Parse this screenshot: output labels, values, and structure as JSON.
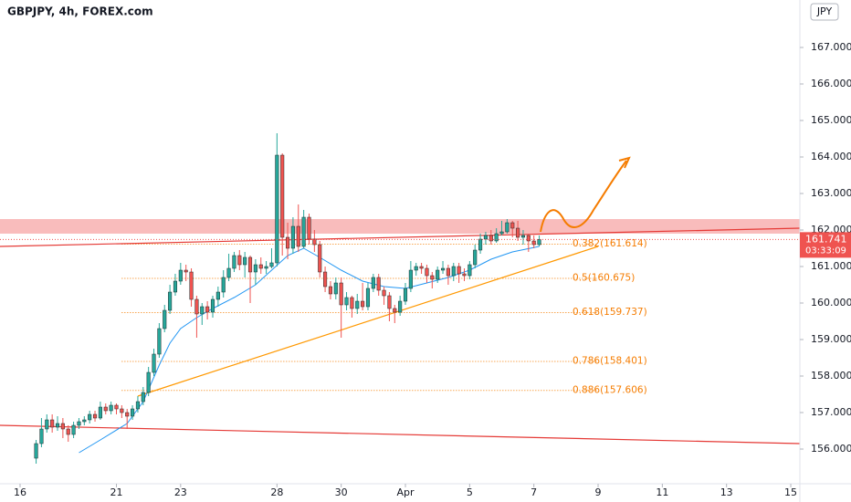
{
  "chart_data": {
    "type": "candlestick",
    "title": "GBPJPY, 4h, FOREX.com",
    "currency": "JPY",
    "up_color": "#26a69a",
    "down_color": "#ef5350",
    "xlim": [
      -3.75,
      145.7
    ],
    "ylim": [
      155.05,
      168.3
    ],
    "xticks": [
      {
        "value": 0,
        "label": "16"
      },
      {
        "value": 18,
        "label": "21"
      },
      {
        "value": 30,
        "label": "23"
      },
      {
        "value": 48,
        "label": "28"
      },
      {
        "value": 60,
        "label": "30"
      },
      {
        "value": 72,
        "label": "Apr"
      },
      {
        "value": 84,
        "label": "5"
      },
      {
        "value": 96,
        "label": "7"
      },
      {
        "value": 108,
        "label": "9"
      },
      {
        "value": 120,
        "label": "11"
      },
      {
        "value": 132,
        "label": "13"
      },
      {
        "value": 144,
        "label": "15"
      }
    ],
    "yticks": [
      {
        "value": 156,
        "label": "156.000"
      },
      {
        "value": 157,
        "label": "157.000"
      },
      {
        "value": 158,
        "label": "158.000"
      },
      {
        "value": 159,
        "label": "159.000"
      },
      {
        "value": 160,
        "label": "160.000"
      },
      {
        "value": 161,
        "label": "161.000"
      },
      {
        "value": 162,
        "label": "162.000"
      },
      {
        "value": 163,
        "label": "163.000"
      },
      {
        "value": 164,
        "label": "164.000"
      },
      {
        "value": 165,
        "label": "165.000"
      },
      {
        "value": 166,
        "label": "166.000"
      },
      {
        "value": 167,
        "label": "167.000"
      }
    ],
    "x": [
      3,
      4,
      5,
      6,
      7,
      8,
      9,
      10,
      11,
      12,
      13,
      14,
      15,
      16,
      17,
      18,
      19,
      20,
      21,
      22,
      23,
      24,
      25,
      26,
      27,
      28,
      29,
      30,
      31,
      32,
      33,
      34,
      35,
      36,
      37,
      38,
      39,
      40,
      41,
      42,
      43,
      44,
      45,
      46,
      47,
      48,
      49,
      50,
      51,
      52,
      53,
      54,
      55,
      56,
      57,
      58,
      59,
      60,
      61,
      62,
      63,
      64,
      65,
      66,
      67,
      68,
      69,
      70,
      71,
      72,
      73,
      74,
      75,
      76,
      77,
      78,
      79,
      80,
      81,
      82,
      83,
      84,
      85,
      86,
      87,
      88,
      89,
      90,
      91,
      92,
      93,
      94,
      95,
      96,
      97
    ],
    "open": [
      155.75,
      156.15,
      156.55,
      156.8,
      156.6,
      156.7,
      156.55,
      156.4,
      156.65,
      156.75,
      156.8,
      156.95,
      156.85,
      157.15,
      157.05,
      157.2,
      157.1,
      157.0,
      156.9,
      157.1,
      157.3,
      157.55,
      158.1,
      158.6,
      159.3,
      159.8,
      160.3,
      160.6,
      160.9,
      160.85,
      160.1,
      159.7,
      159.9,
      159.75,
      160.1,
      160.3,
      160.7,
      160.95,
      161.3,
      161.05,
      161.25,
      160.85,
      161.05,
      160.95,
      161.0,
      161.1,
      164.05,
      161.8,
      161.5,
      162.1,
      161.55,
      162.35,
      161.75,
      161.6,
      160.85,
      160.45,
      160.25,
      160.55,
      159.95,
      160.15,
      159.85,
      160.05,
      159.9,
      160.4,
      160.7,
      160.35,
      160.2,
      159.85,
      159.75,
      160.05,
      160.4,
      160.9,
      161.0,
      160.95,
      160.75,
      160.65,
      160.9,
      160.95,
      160.75,
      161.0,
      160.8,
      160.75,
      161.05,
      161.45,
      161.75,
      161.85,
      161.7,
      161.9,
      161.95,
      162.2,
      162.05,
      161.8,
      161.85,
      161.7,
      161.6
    ],
    "high": [
      156.25,
      156.85,
      156.95,
      156.95,
      156.9,
      156.85,
      156.65,
      156.75,
      156.85,
      156.9,
      157.05,
      157.05,
      157.3,
      157.25,
      157.3,
      157.25,
      157.2,
      157.1,
      157.2,
      157.45,
      157.7,
      158.25,
      158.75,
      159.45,
      159.95,
      160.5,
      160.8,
      161.1,
      161.05,
      160.95,
      160.2,
      160.0,
      160.05,
      160.2,
      160.45,
      160.9,
      161.35,
      161.4,
      161.45,
      161.4,
      161.3,
      161.2,
      161.25,
      161.15,
      161.5,
      164.65,
      164.1,
      162.2,
      162.35,
      162.7,
      162.55,
      162.45,
      162.0,
      161.7,
      161.0,
      160.6,
      160.7,
      160.7,
      160.3,
      160.2,
      160.25,
      160.55,
      160.55,
      160.8,
      160.8,
      160.45,
      160.3,
      159.95,
      160.2,
      160.55,
      161.15,
      161.1,
      161.1,
      161.05,
      160.85,
      161.0,
      161.15,
      161.05,
      161.1,
      161.1,
      160.95,
      161.15,
      161.6,
      161.9,
      161.95,
      162.0,
      162.05,
      162.25,
      162.3,
      162.25,
      162.25,
      162.0,
      161.9,
      161.85,
      161.85
    ],
    "low": [
      155.6,
      156.05,
      156.45,
      156.45,
      156.5,
      156.3,
      156.2,
      156.3,
      156.55,
      156.65,
      156.7,
      156.75,
      156.8,
      156.95,
      156.95,
      156.95,
      156.85,
      156.55,
      156.8,
      157.0,
      157.2,
      157.45,
      158.0,
      158.5,
      159.2,
      159.7,
      160.2,
      160.5,
      160.6,
      159.9,
      159.05,
      159.4,
      159.55,
      159.6,
      159.9,
      160.15,
      160.6,
      160.85,
      160.9,
      160.7,
      160.0,
      160.5,
      160.8,
      160.8,
      160.95,
      161.0,
      161.3,
      161.2,
      161.35,
      161.4,
      161.5,
      161.6,
      161.4,
      160.7,
      160.3,
      160.1,
      160.1,
      159.05,
      159.8,
      159.6,
      159.7,
      159.8,
      159.8,
      160.3,
      160.2,
      159.95,
      159.5,
      159.45,
      159.65,
      159.95,
      160.3,
      160.75,
      160.8,
      160.55,
      160.4,
      160.55,
      160.8,
      160.5,
      160.6,
      160.55,
      160.6,
      160.65,
      160.95,
      161.35,
      161.6,
      161.6,
      161.65,
      161.85,
      161.9,
      161.8,
      161.7,
      161.6,
      161.4,
      161.5,
      161.55
    ],
    "close": [
      156.15,
      156.55,
      156.8,
      156.6,
      156.7,
      156.55,
      156.4,
      156.65,
      156.75,
      156.8,
      156.95,
      156.85,
      157.15,
      157.05,
      157.2,
      157.1,
      157.0,
      156.9,
      157.1,
      157.3,
      157.55,
      158.1,
      158.6,
      159.3,
      159.8,
      160.3,
      160.6,
      160.9,
      160.85,
      160.1,
      159.7,
      159.9,
      159.75,
      160.1,
      160.3,
      160.7,
      160.95,
      161.3,
      161.05,
      161.25,
      160.85,
      161.05,
      160.95,
      161.0,
      161.1,
      164.05,
      161.8,
      161.5,
      162.1,
      161.55,
      162.35,
      161.75,
      161.6,
      160.85,
      160.45,
      160.25,
      160.55,
      159.95,
      160.15,
      159.85,
      160.05,
      159.9,
      160.4,
      160.7,
      160.35,
      160.2,
      159.85,
      159.75,
      160.05,
      160.4,
      160.9,
      161.0,
      160.95,
      160.75,
      160.65,
      160.9,
      160.95,
      160.75,
      161.0,
      160.8,
      160.75,
      161.05,
      161.45,
      161.75,
      161.85,
      161.7,
      161.9,
      161.95,
      162.2,
      162.05,
      161.8,
      161.85,
      161.7,
      161.6,
      161.741
    ],
    "ma": {
      "color": "#2196f3",
      "x": [
        11,
        15,
        20,
        23,
        26,
        28,
        30,
        33,
        36,
        40,
        44,
        47,
        50,
        53,
        56,
        60,
        64,
        68,
        72,
        76,
        80,
        84,
        88,
        92,
        97
      ],
      "values": [
        155.9,
        156.25,
        156.7,
        157.3,
        158.3,
        158.9,
        159.3,
        159.6,
        159.85,
        160.15,
        160.5,
        160.9,
        161.3,
        161.5,
        161.25,
        160.9,
        160.6,
        160.45,
        160.4,
        160.55,
        160.7,
        160.9,
        161.2,
        161.4,
        161.55
      ]
    },
    "zone": {
      "color": "#f7a6a6",
      "values": [
        162.3,
        161.9
      ]
    },
    "lines": [
      {
        "color": "#e53935",
        "x": [
          -3.75,
          145.7
        ],
        "values": [
          161.55,
          162.05
        ]
      },
      {
        "color": "#e53935",
        "x": [
          -3.75,
          145.7
        ],
        "values": [
          156.65,
          156.15
        ]
      },
      {
        "color": "#ff9800",
        "x": [
          22,
          108
        ],
        "values": [
          157.45,
          161.55
        ]
      }
    ],
    "fib": {
      "color": "#f57c00",
      "x": [
        19,
        108
      ],
      "levels": [
        {
          "value": 161.614,
          "label": "0.382(161.614)"
        },
        {
          "value": 160.675,
          "label": "0.5(160.675)"
        },
        {
          "value": 159.737,
          "label": "0.618(159.737)"
        },
        {
          "value": 158.401,
          "label": "0.786(158.401)"
        },
        {
          "value": 157.606,
          "label": "0.886(157.606)"
        }
      ]
    },
    "last_price": 161.741,
    "countdown": "03:33:09"
  }
}
